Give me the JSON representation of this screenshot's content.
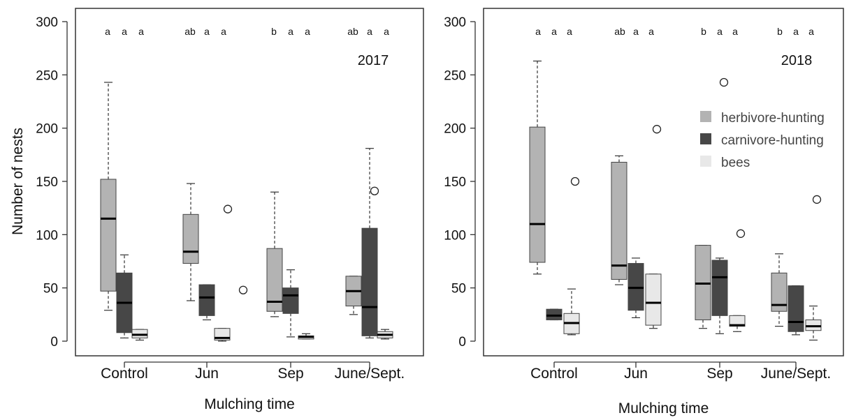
{
  "figure": {
    "legend": {
      "placement": "right, upper-middle of second panel",
      "entries": [
        {
          "key": "herbivore",
          "label": "herbivore-hunting",
          "color": "#b3b3b3"
        },
        {
          "key": "carnivore",
          "label": "carnivore-hunting",
          "color": "#474747"
        },
        {
          "key": "bees",
          "label": "bees",
          "color": "#e8e8e8"
        }
      ]
    }
  },
  "chart_data": [
    {
      "type": "box",
      "panel_label": "2017",
      "xlabel": "Mulching time",
      "ylabel": "Number of nests",
      "ylim": [
        0,
        300
      ],
      "yticks": [
        0,
        50,
        100,
        150,
        200,
        250,
        300
      ],
      "grid": false,
      "categories": [
        "Control",
        "Jun",
        "Sep",
        "June/Sept."
      ],
      "significance_letters": [
        [
          "a",
          "a",
          "a"
        ],
        [
          "ab",
          "a",
          "a"
        ],
        [
          "b",
          "a",
          "a"
        ],
        [
          "ab",
          "a",
          "a"
        ]
      ],
      "series": [
        {
          "name": "herbivore-hunting",
          "color": "#b3b3b3",
          "boxes": [
            {
              "whisker_low": 29,
              "q1": 47,
              "median": 115,
              "q3": 152,
              "whisker_high": 243,
              "outliers": []
            },
            {
              "whisker_low": 38,
              "q1": 73,
              "median": 84,
              "q3": 119,
              "whisker_high": 148,
              "outliers": []
            },
            {
              "whisker_low": 23,
              "q1": 28,
              "median": 37,
              "q3": 87,
              "whisker_high": 140,
              "outliers": []
            },
            {
              "whisker_low": 25,
              "q1": 33,
              "median": 47,
              "q3": 61,
              "whisker_high": 61,
              "outliers": [
                141
              ]
            }
          ]
        },
        {
          "name": "carnivore-hunting",
          "color": "#474747",
          "boxes": [
            {
              "whisker_low": 3,
              "q1": 8,
              "median": 36,
              "q3": 64,
              "whisker_high": 81,
              "outliers": []
            },
            {
              "whisker_low": 20,
              "q1": 24,
              "median": 41,
              "q3": 53,
              "whisker_high": 53,
              "outliers": [
                124
              ]
            },
            {
              "whisker_low": 4,
              "q1": 26,
              "median": 43,
              "q3": 50,
              "whisker_high": 67,
              "outliers": []
            },
            {
              "whisker_low": 3,
              "q1": 5,
              "median": 32,
              "q3": 106,
              "whisker_high": 181,
              "outliers": []
            }
          ]
        },
        {
          "name": "bees",
          "color": "#e8e8e8",
          "boxes": [
            {
              "whisker_low": 1,
              "q1": 3,
              "median": 6,
              "q3": 11,
              "whisker_high": 11,
              "outliers": []
            },
            {
              "whisker_low": 0,
              "q1": 1,
              "median": 3,
              "q3": 12,
              "whisker_high": 12,
              "outliers": [
                48
              ]
            },
            {
              "whisker_low": 2,
              "q1": 2,
              "median": 4,
              "q3": 5,
              "whisker_high": 7,
              "outliers": []
            },
            {
              "whisker_low": 2,
              "q1": 3,
              "median": 6,
              "q3": 9,
              "whisker_high": 11,
              "outliers": []
            }
          ]
        }
      ]
    },
    {
      "type": "box",
      "panel_label": "2018",
      "xlabel": "Mulching time",
      "ylabel": "",
      "ylim": [
        0,
        300
      ],
      "yticks": [
        0,
        50,
        100,
        150,
        200,
        250,
        300
      ],
      "grid": false,
      "categories": [
        "Control",
        "Jun",
        "Sep",
        "June/Sept."
      ],
      "significance_letters": [
        [
          "a",
          "a",
          "a"
        ],
        [
          "ab",
          "a",
          "a"
        ],
        [
          "b",
          "a",
          "a"
        ],
        [
          "b",
          "a",
          "a"
        ]
      ],
      "series": [
        {
          "name": "herbivore-hunting",
          "color": "#b3b3b3",
          "boxes": [
            {
              "whisker_low": 63,
              "q1": 74,
              "median": 110,
              "q3": 201,
              "whisker_high": 263,
              "outliers": []
            },
            {
              "whisker_low": 53,
              "q1": 58,
              "median": 71,
              "q3": 168,
              "whisker_high": 174,
              "outliers": []
            },
            {
              "whisker_low": 12,
              "q1": 20,
              "median": 54,
              "q3": 90,
              "whisker_high": 90,
              "outliers": [
                243
              ]
            },
            {
              "whisker_low": 14,
              "q1": 28,
              "median": 34,
              "q3": 64,
              "whisker_high": 82,
              "outliers": []
            }
          ]
        },
        {
          "name": "carnivore-hunting",
          "color": "#474747",
          "boxes": [
            {
              "whisker_low": 20,
              "q1": 20,
              "median": 24,
              "q3": 30,
              "whisker_high": 30,
              "outliers": [
                150
              ]
            },
            {
              "whisker_low": 22,
              "q1": 29,
              "median": 50,
              "q3": 73,
              "whisker_high": 78,
              "outliers": [
                199
              ]
            },
            {
              "whisker_low": 7,
              "q1": 24,
              "median": 60,
              "q3": 76,
              "whisker_high": 78,
              "outliers": [
                101
              ]
            },
            {
              "whisker_low": 6,
              "q1": 9,
              "median": 18,
              "q3": 52,
              "whisker_high": 52,
              "outliers": [
                133
              ]
            }
          ]
        },
        {
          "name": "bees",
          "color": "#e8e8e8",
          "boxes": [
            {
              "whisker_low": 6,
              "q1": 7,
              "median": 17,
              "q3": 26,
              "whisker_high": 49,
              "outliers": []
            },
            {
              "whisker_low": 12,
              "q1": 15,
              "median": 36,
              "q3": 63,
              "whisker_high": 63,
              "outliers": []
            },
            {
              "whisker_low": 9,
              "q1": 14,
              "median": 15,
              "q3": 24,
              "whisker_high": 24,
              "outliers": []
            },
            {
              "whisker_low": 1,
              "q1": 10,
              "median": 14,
              "q3": 20,
              "whisker_high": 33,
              "outliers": []
            }
          ]
        }
      ]
    }
  ]
}
